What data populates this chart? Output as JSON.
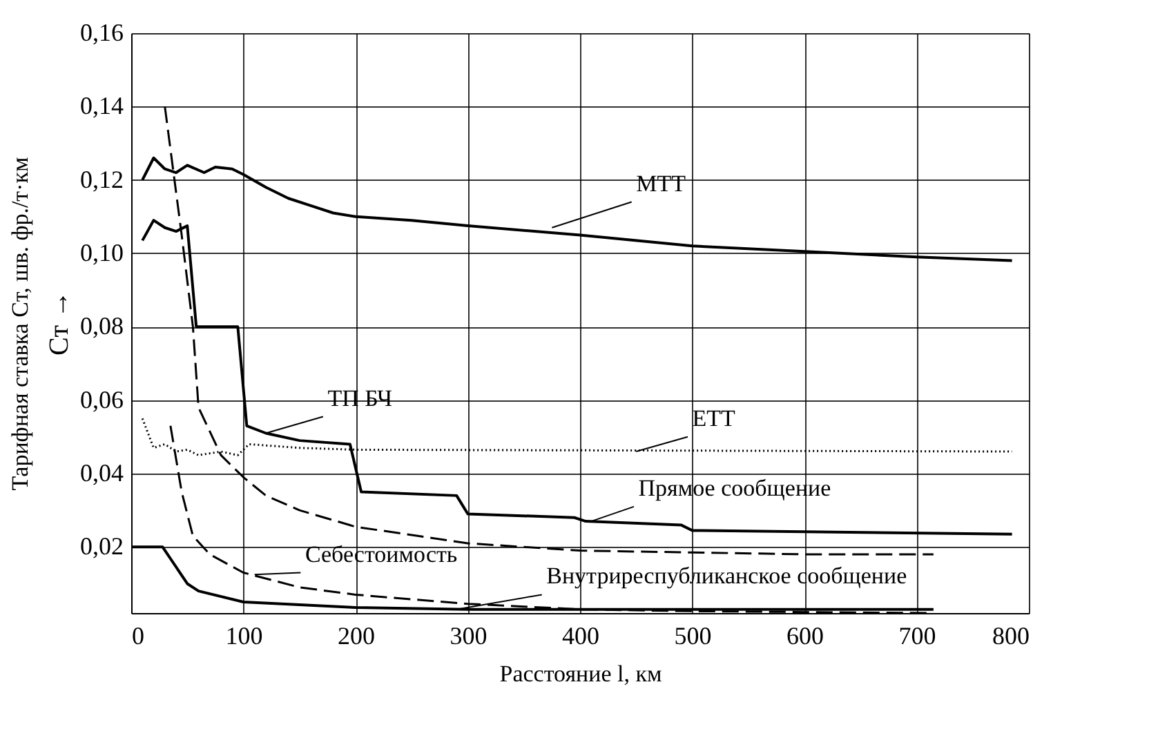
{
  "chart_data": {
    "type": "line",
    "xlabel": "Расстояние l, км",
    "ylabel": "Тарифная ставка Cт, шв. фр./т·км",
    "xlim": [
      0,
      800
    ],
    "xticks": [
      0,
      100,
      200,
      300,
      400,
      500,
      600,
      700,
      800
    ],
    "ylim": [
      0.002,
      0.16
    ],
    "yticks": [
      {
        "value": 0.02,
        "label": "0,02"
      },
      {
        "value": 0.04,
        "label": "0,04"
      },
      {
        "value": 0.06,
        "label": "0,06"
      },
      {
        "value": 0.08,
        "label": "0,08"
      },
      {
        "value": 0.1,
        "label": "0,10"
      },
      {
        "value": 0.12,
        "label": "0,12"
      },
      {
        "value": 0.14,
        "label": "0,14"
      },
      {
        "value": 0.16,
        "label": "0,16"
      }
    ],
    "grid": true,
    "legend": false,
    "marker": "none",
    "series": [
      {
        "color": "#000000",
        "line_style": "solid",
        "x": [
          10,
          20,
          30,
          40,
          50,
          65,
          75,
          90,
          100,
          120,
          140,
          160,
          180,
          200,
          250,
          300,
          400,
          500,
          600,
          700,
          785
        ],
        "values": [
          0.12,
          0.126,
          0.123,
          0.122,
          0.124,
          0.122,
          0.1235,
          0.123,
          0.1215,
          0.118,
          0.115,
          0.113,
          0.111,
          0.11,
          0.109,
          0.1075,
          0.105,
          0.102,
          0.1005,
          0.099,
          0.098
        ]
      },
      {
        "color": "#000000",
        "line_style": "solid",
        "x": [
          10,
          20,
          30,
          40,
          50,
          58,
          95,
          103,
          120,
          150,
          195,
          205,
          290,
          300,
          395,
          405,
          490,
          500,
          785
        ],
        "values": [
          0.1035,
          0.109,
          0.107,
          0.106,
          0.1075,
          0.08,
          0.08,
          0.053,
          0.051,
          0.049,
          0.048,
          0.035,
          0.034,
          0.029,
          0.028,
          0.027,
          0.026,
          0.0245,
          0.0235
        ]
      },
      {
        "color": "#000000",
        "line_style": "dotted",
        "x": [
          10,
          20,
          30,
          40,
          50,
          60,
          80,
          95,
          105,
          150,
          200,
          785
        ],
        "values": [
          0.055,
          0.047,
          0.048,
          0.046,
          0.0465,
          0.045,
          0.046,
          0.045,
          0.048,
          0.047,
          0.0465,
          0.046
        ]
      },
      {
        "color": "#000000",
        "line_style": "dashed",
        "x": [
          30,
          45,
          55,
          60,
          80,
          100,
          120,
          150,
          200,
          300,
          400,
          500,
          600,
          715
        ],
        "values": [
          0.14,
          0.105,
          0.08,
          0.058,
          0.045,
          0.039,
          0.034,
          0.03,
          0.0255,
          0.021,
          0.019,
          0.0185,
          0.018,
          0.018
        ]
      },
      {
        "color": "#000000",
        "line_style": "dashed",
        "x": [
          35,
          45,
          55,
          70,
          100,
          150,
          200,
          300,
          400,
          500,
          715
        ],
        "values": [
          0.053,
          0.035,
          0.023,
          0.018,
          0.013,
          0.009,
          0.007,
          0.0045,
          0.003,
          0.0025,
          0.002
        ]
      },
      {
        "color": "#000000",
        "line_style": "solid",
        "x": [
          0,
          28,
          50,
          60,
          100,
          200,
          300,
          400,
          715
        ],
        "values": [
          0.02,
          0.02,
          0.01,
          0.008,
          0.005,
          0.0035,
          0.003,
          0.003,
          0.003
        ]
      }
    ],
    "annotations": [
      {
        "text": "МТТ",
        "x": 375,
        "y": 0.107
      },
      {
        "text": "ТП БЧ",
        "x": 120,
        "y": 0.051
      },
      {
        "text": "ЕТТ",
        "x": 450,
        "y": 0.046
      },
      {
        "text": "Прямое сообщение",
        "x": 410,
        "y": 0.027
      },
      {
        "text": "Себестоимость",
        "x": 110,
        "y": 0.0125
      },
      {
        "text": "Внутриреспубликанское сообщение",
        "x": 290,
        "y": 0.003
      },
      "Cт →"
    ]
  }
}
